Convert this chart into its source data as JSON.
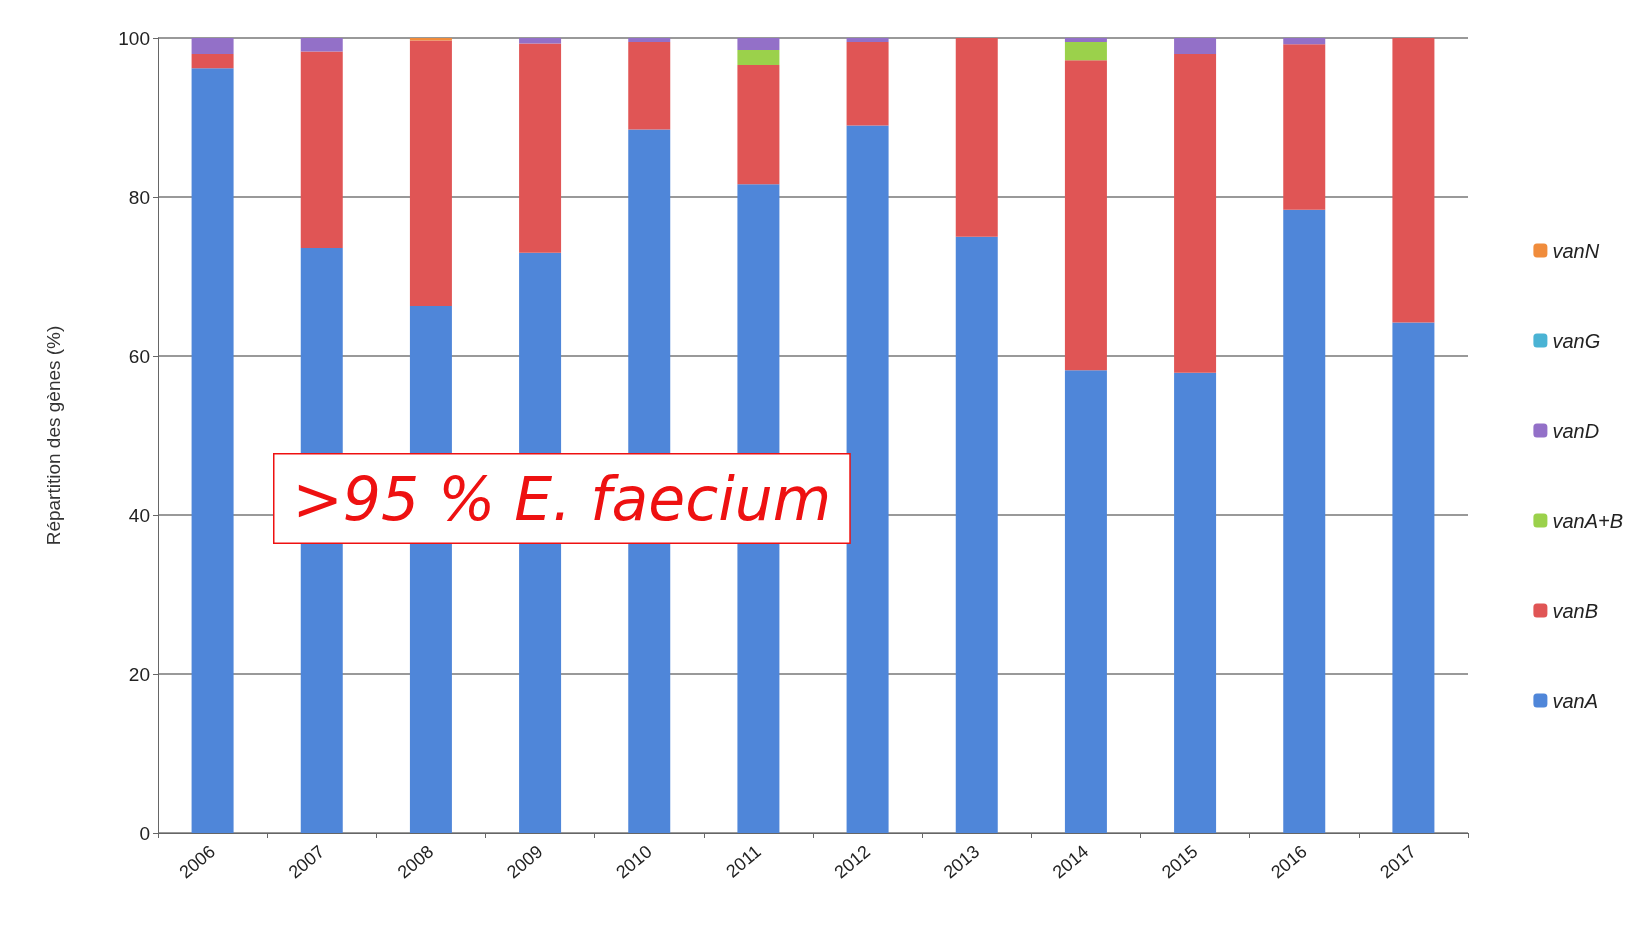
{
  "chart_data": {
    "type": "bar",
    "stacked": true,
    "ylabel": "Répartition des gènes (%)",
    "categories": [
      "2006",
      "2007",
      "2008",
      "2009",
      "2010",
      "2011",
      "2012",
      "2013",
      "2014",
      "2015",
      "2016",
      "2017"
    ],
    "series": [
      {
        "name": "vanA",
        "color": "#4f86d9",
        "values": [
          96.2,
          73.6,
          66.3,
          73,
          88.5,
          81.6,
          89,
          75,
          58.2,
          57.9,
          78.4,
          64.2
        ]
      },
      {
        "name": "vanB",
        "color": "#e05555",
        "values": [
          1.8,
          24.7,
          33.4,
          26.3,
          11,
          15,
          10.5,
          25,
          39,
          40.1,
          20.8,
          35.8
        ]
      },
      {
        "name": "vanA+B",
        "color": "#9bd14b",
        "values": [
          0,
          0,
          0,
          0,
          0,
          1.9,
          0,
          0,
          2.3,
          0,
          0,
          0
        ]
      },
      {
        "name": "vanD",
        "color": "#9370c8",
        "values": [
          2,
          1.7,
          0,
          0.7,
          0.5,
          1.5,
          0.5,
          0,
          0.5,
          2,
          0.8,
          0
        ]
      },
      {
        "name": "vanG",
        "color": "#4ab3d4",
        "values": [
          0,
          0,
          0,
          0,
          0,
          0,
          0,
          0,
          0,
          0,
          0,
          0
        ]
      },
      {
        "name": "vanN",
        "color": "#f08c3c",
        "values": [
          0,
          0,
          0.3,
          0,
          0,
          0,
          0,
          0,
          0,
          0,
          0,
          0
        ]
      }
    ],
    "ylim": [
      0,
      100
    ],
    "yticks": [
      0,
      20,
      40,
      60,
      80,
      100
    ],
    "grid": "y",
    "legend": "right",
    "annotations": [
      ">95 % E. faecium"
    ]
  }
}
